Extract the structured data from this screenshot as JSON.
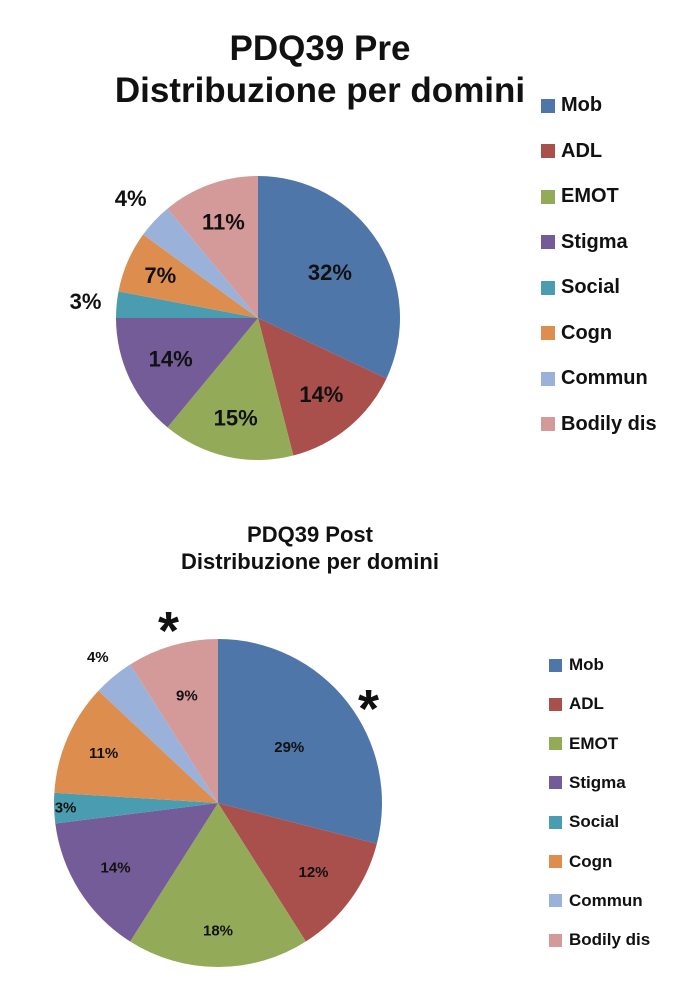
{
  "chart_data": [
    {
      "type": "pie",
      "title": "PDQ39 Pre",
      "subtitle": "Distribuzione per domini",
      "categories": [
        "Mob",
        "ADL",
        "EMOT",
        "Stigma",
        "Social",
        "Cogn",
        "Commun",
        "Bodily dis"
      ],
      "values": [
        32,
        14,
        15,
        14,
        3,
        7,
        4,
        11
      ],
      "labels": [
        "32%",
        "14%",
        "15%",
        "14%",
        "3%",
        "7%",
        "4%",
        "11%"
      ],
      "colors": [
        "#4F76A9",
        "#A9504C",
        "#93AB58",
        "#735C98",
        "#4A9DB0",
        "#DD8E4F",
        "#9AB2D9",
        "#D49A99"
      ],
      "legend": "right",
      "start_angle": "12 o'clock",
      "direction": "clockwise"
    },
    {
      "type": "pie",
      "title": "PDQ39 Post",
      "subtitle": "Distribuzione per domini",
      "categories": [
        "Mob",
        "ADL",
        "EMOT",
        "Stigma",
        "Social",
        "Cogn",
        "Commun",
        "Bodily dis"
      ],
      "values": [
        29,
        12,
        18,
        14,
        3,
        11,
        4,
        9
      ],
      "labels": [
        "29%",
        "12%",
        "18%",
        "14%",
        "3%",
        "11%",
        "4%",
        "9%"
      ],
      "colors": [
        "#4F76A9",
        "#A9504C",
        "#93AB58",
        "#735C98",
        "#4A9DB0",
        "#DD8E4F",
        "#9AB2D9",
        "#D49A99"
      ],
      "legend": "right",
      "start_angle": "12 o'clock",
      "direction": "clockwise",
      "annotations": [
        {
          "text": "*",
          "category": "Bodily dis"
        },
        {
          "text": "*",
          "category": "Mob"
        }
      ]
    }
  ]
}
